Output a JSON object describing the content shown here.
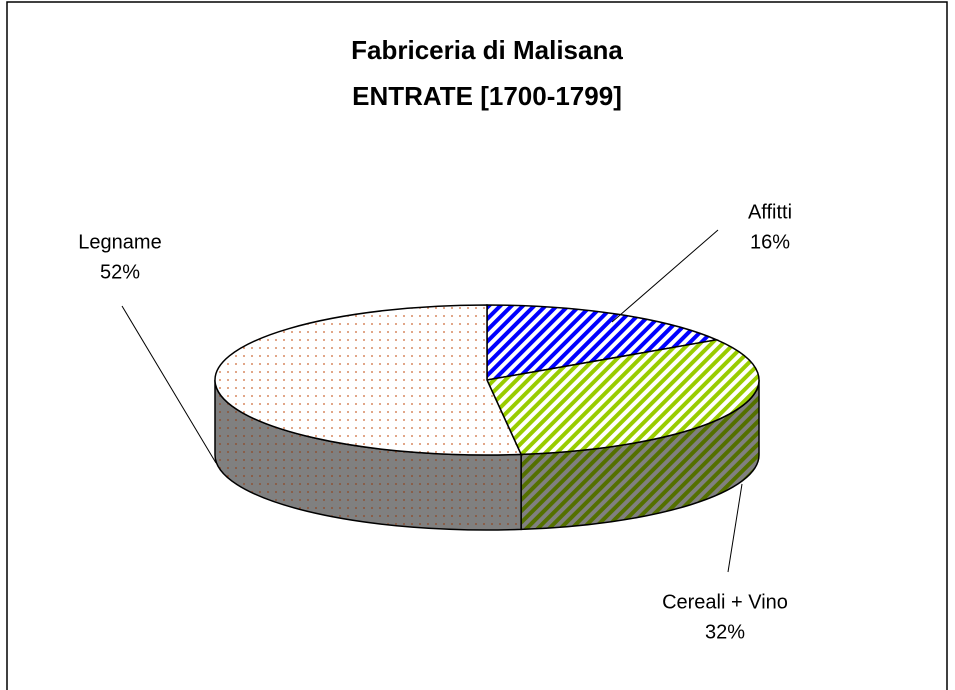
{
  "chart_data": {
    "type": "pie",
    "title": "Fabriceria di Malisana",
    "subtitle": "ENTRATE [1700-1799]",
    "categories": [
      "Affitti",
      "Cereali + Vino",
      "Legname"
    ],
    "values": [
      16,
      32,
      52
    ],
    "value_labels": [
      "16%",
      "32%",
      "52%"
    ],
    "colors": [
      "#0000ff",
      "#99cc00",
      "#cc6633"
    ]
  }
}
